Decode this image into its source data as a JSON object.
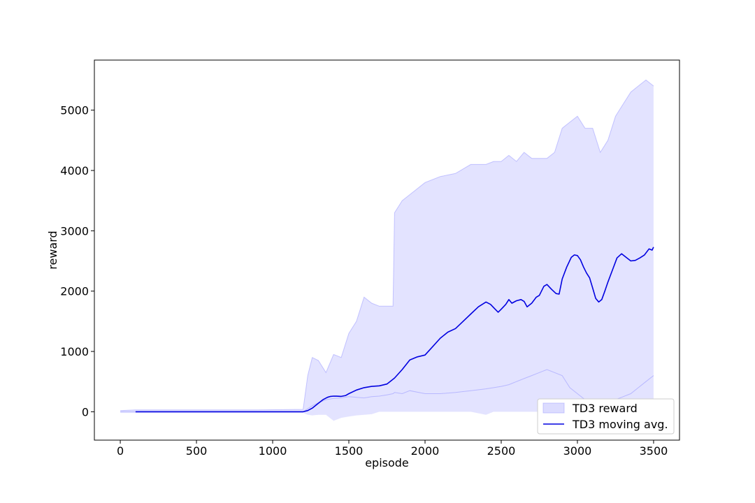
{
  "chart_data": {
    "type": "line",
    "title": "",
    "xlabel": "episode",
    "ylabel": "reward",
    "xlim": [
      -170,
      3670
    ],
    "ylim": [
      -470,
      5830
    ],
    "xticks": [
      0,
      500,
      1000,
      1500,
      2000,
      2500,
      3000,
      3500
    ],
    "yticks": [
      0,
      1000,
      2000,
      3000,
      4000,
      5000
    ],
    "grid": false,
    "legend_position": "lower-right",
    "colors": {
      "band": "#9b9bff",
      "line": "#0000e0"
    },
    "series": [
      {
        "name": "TD3 reward",
        "kind": "band",
        "x": [
          0,
          100,
          300,
          600,
          900,
          1200,
          1230,
          1260,
          1300,
          1350,
          1400,
          1450,
          1500,
          1550,
          1600,
          1650,
          1700,
          1750,
          1790,
          1800,
          1850,
          1900,
          2000,
          2100,
          2200,
          2300,
          2400,
          2450,
          2500,
          2550,
          2600,
          2650,
          2700,
          2750,
          2800,
          2850,
          2900,
          2950,
          3000,
          3050,
          3100,
          3150,
          3200,
          3250,
          3300,
          3350,
          3400,
          3450,
          3500
        ],
        "upper": [
          20,
          30,
          30,
          30,
          30,
          40,
          600,
          900,
          850,
          650,
          950,
          900,
          1300,
          1500,
          1900,
          1800,
          1750,
          1750,
          1750,
          3300,
          3500,
          3600,
          3800,
          3900,
          3950,
          4100,
          4100,
          4150,
          4150,
          4250,
          4150,
          4300,
          4200,
          4200,
          4200,
          4300,
          4700,
          4800,
          4900,
          4700,
          4700,
          4300,
          4500,
          4900,
          5100,
          5300,
          5400,
          5500,
          5400
        ],
        "lower": [
          -20,
          -20,
          -20,
          -20,
          -20,
          -20,
          -50,
          -60,
          -50,
          -50,
          -150,
          -100,
          -80,
          -60,
          -50,
          -40,
          0,
          0,
          0,
          0,
          0,
          0,
          0,
          0,
          0,
          0,
          -50,
          0,
          0,
          0,
          0,
          0,
          0,
          0,
          0,
          0,
          0,
          0,
          0,
          0,
          0,
          0,
          0,
          0,
          0,
          0,
          0,
          0,
          0
        ],
        "low_trace": [
          0,
          0,
          0,
          0,
          0,
          0,
          50,
          100,
          150,
          200,
          220,
          230,
          250,
          240,
          230,
          250,
          260,
          280,
          300,
          320,
          300,
          350,
          300,
          300,
          320,
          350,
          380,
          400,
          420,
          450,
          500,
          550,
          600,
          650,
          700,
          650,
          600,
          400,
          300,
          200,
          100,
          50,
          100,
          200,
          250,
          300,
          400,
          500,
          600
        ]
      },
      {
        "name": "TD3 moving avg.",
        "kind": "line",
        "x": [
          100,
          200,
          400,
          600,
          800,
          1000,
          1100,
          1200,
          1230,
          1260,
          1300,
          1330,
          1360,
          1380,
          1400,
          1420,
          1450,
          1480,
          1500,
          1550,
          1600,
          1650,
          1700,
          1750,
          1800,
          1850,
          1900,
          1950,
          2000,
          2050,
          2100,
          2150,
          2200,
          2250,
          2300,
          2350,
          2400,
          2430,
          2460,
          2480,
          2500,
          2530,
          2550,
          2570,
          2600,
          2630,
          2650,
          2670,
          2700,
          2730,
          2750,
          2780,
          2800,
          2830,
          2860,
          2880,
          2900,
          2930,
          2960,
          2980,
          3000,
          3020,
          3040,
          3060,
          3080,
          3100,
          3120,
          3140,
          3160,
          3180,
          3200,
          3230,
          3260,
          3290,
          3320,
          3350,
          3380,
          3410,
          3440,
          3470,
          3490,
          3500
        ],
        "values": [
          0,
          0,
          0,
          0,
          0,
          0,
          0,
          0,
          20,
          60,
          140,
          200,
          240,
          255,
          260,
          258,
          255,
          270,
          300,
          360,
          400,
          420,
          430,
          460,
          560,
          700,
          860,
          910,
          940,
          1080,
          1220,
          1320,
          1380,
          1500,
          1620,
          1740,
          1820,
          1780,
          1700,
          1650,
          1700,
          1780,
          1860,
          1800,
          1840,
          1860,
          1830,
          1740,
          1800,
          1900,
          1930,
          2080,
          2110,
          2030,
          1960,
          1950,
          2200,
          2400,
          2560,
          2600,
          2590,
          2520,
          2400,
          2300,
          2220,
          2050,
          1880,
          1820,
          1860,
          2000,
          2150,
          2350,
          2550,
          2620,
          2560,
          2500,
          2510,
          2550,
          2600,
          2700,
          2680,
          2730
        ]
      }
    ]
  }
}
